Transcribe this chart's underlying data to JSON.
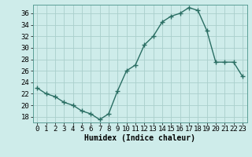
{
  "x": [
    0,
    1,
    2,
    3,
    4,
    5,
    6,
    7,
    8,
    9,
    10,
    11,
    12,
    13,
    14,
    15,
    16,
    17,
    18,
    19,
    20,
    21,
    22,
    23
  ],
  "y": [
    23,
    22,
    21.5,
    20.5,
    20,
    19,
    18.5,
    17.5,
    18.5,
    22.5,
    26,
    27,
    30.5,
    32,
    34.5,
    35.5,
    36,
    37,
    36.5,
    33,
    27.5,
    27.5,
    27.5,
    25
  ],
  "line_color": "#2a6e63",
  "marker": "+",
  "marker_size": 4,
  "line_width": 1.0,
  "xlabel": "Humidex (Indice chaleur)",
  "bg_color": "#ceecea",
  "grid_color": "#aacfcc",
  "xlim": [
    -0.5,
    23.5
  ],
  "ylim": [
    17,
    37.5
  ],
  "yticks": [
    18,
    20,
    22,
    24,
    26,
    28,
    30,
    32,
    34,
    36
  ],
  "xticks": [
    0,
    1,
    2,
    3,
    4,
    5,
    6,
    7,
    8,
    9,
    10,
    11,
    12,
    13,
    14,
    15,
    16,
    17,
    18,
    19,
    20,
    21,
    22,
    23
  ],
  "xlabel_fontsize": 7,
  "tick_fontsize": 6.5
}
